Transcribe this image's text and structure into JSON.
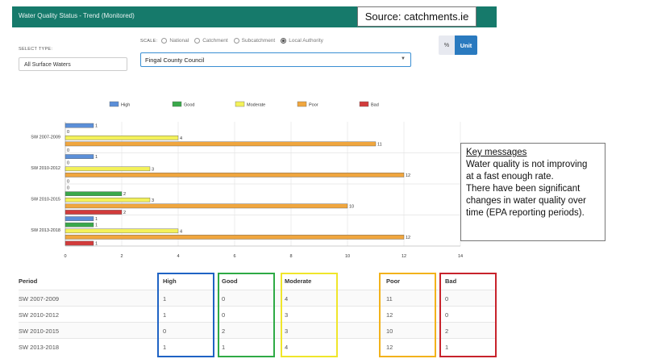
{
  "header": {
    "title": "Water Quality Status - Trend (Monitored)",
    "background_color": "#167a6b"
  },
  "source_label": "Source: catchments.ie",
  "controls": {
    "select_type_label": "SELECT TYPE:",
    "select_type_value": "All Surface Waters",
    "scale_label": "SCALE:",
    "scale_options": [
      "National",
      "Catchment",
      "Subcatchment",
      "Local Authority"
    ],
    "scale_selected": "Local Authority",
    "authority_value": "Fingal County Council",
    "toggle": {
      "percent_label": "%",
      "unit_label": "Unit",
      "active": "Unit"
    }
  },
  "chart_data": {
    "type": "bar",
    "orientation": "horizontal",
    "categories": [
      "SW 2007-2009",
      "SW 2010-2012",
      "SW 2010-2015",
      "SW 2013-2018"
    ],
    "series": [
      {
        "name": "High",
        "color": "#5b8fd8",
        "values": [
          1,
          1,
          0,
          1
        ]
      },
      {
        "name": "Good",
        "color": "#3aa84a",
        "values": [
          0,
          0,
          2,
          1
        ]
      },
      {
        "name": "Moderate",
        "color": "#f3f15a",
        "values": [
          4,
          3,
          3,
          4
        ]
      },
      {
        "name": "Poor",
        "color": "#f0a63e",
        "values": [
          11,
          12,
          10,
          12
        ]
      },
      {
        "name": "Bad",
        "color": "#d23b3b",
        "values": [
          0,
          0,
          2,
          1
        ]
      }
    ],
    "xlim": [
      0,
      14
    ],
    "xticks": [
      "0",
      "2",
      "4",
      "6",
      "8",
      "10",
      "12",
      "14"
    ],
    "grid": true,
    "legend_position": "top"
  },
  "key_messages": {
    "title": "Key messages",
    "lines": [
      "Water quality is not improving",
      "at a fast enough rate.",
      "There have been significant",
      "changes in water quality over",
      "time (EPA reporting periods)."
    ]
  },
  "table": {
    "columns": [
      "Period",
      "High",
      "Good",
      "Moderate",
      "Poor",
      "Bad"
    ],
    "rows": [
      [
        "SW 2007-2009",
        "1",
        "0",
        "4",
        "11",
        "0"
      ],
      [
        "SW 2010-2012",
        "1",
        "0",
        "3",
        "12",
        "0"
      ],
      [
        "SW 2010-2015",
        "0",
        "2",
        "3",
        "10",
        "2"
      ],
      [
        "SW 2013-2018",
        "1",
        "1",
        "4",
        "12",
        "1"
      ]
    ],
    "highlight_colors": [
      "#1f63c4",
      "#2eaa45",
      "#f0e62a",
      "#f2b21b",
      "#c8232c"
    ]
  }
}
